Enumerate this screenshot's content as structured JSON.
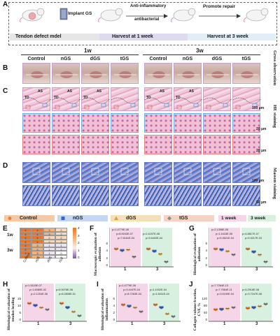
{
  "panel_labels": [
    "A",
    "B",
    "C",
    "D",
    "E",
    "F",
    "G",
    "H",
    "I",
    "J"
  ],
  "panel_a": {
    "steps": [
      "Implant GS",
      "Anti-inflammatory",
      "antibacterial",
      "Promote repair"
    ],
    "timeline": [
      "Tendon defect mdel",
      "Harvest at 1 week",
      "Harvest at 3 week"
    ]
  },
  "time_headers": [
    "1w",
    "3w"
  ],
  "group_headers": [
    "Control",
    "nGS",
    "dGS",
    "tGS",
    "Control",
    "nGS",
    "dGS",
    "tGS"
  ],
  "side_labels": {
    "gross": "Gross observation",
    "he": "HE staining",
    "masson": "Masson staining"
  },
  "tissue_labels": {
    "as": "AS",
    "td": "TD"
  },
  "scale_bars": {
    "c_top": "100 μm",
    "c_mid": "20 μm",
    "c_bot": "20 μm",
    "d_top": "100 μm",
    "d_bot": "50 μm"
  },
  "legend": {
    "groups": [
      "Control",
      "nGS",
      "dGS",
      "tGS"
    ],
    "times": [
      "1 week",
      "3 week"
    ]
  },
  "colors": {
    "control": "#e8823a",
    "ngs": "#3b66c4",
    "dgs": "#d4a24a",
    "tgs": "#8a8a8a",
    "legend_bg_control": "#f6c9a6",
    "legend_bg_ngs": "#c7d6f0",
    "legend_bg_dgs": "#f4e0b8",
    "legend_bg_tgs": "#f6d2c6",
    "band_week1": "#f5d6e8",
    "band_week3": "#d8f0e0",
    "heat_high": "#e8762a",
    "heat_mid": "#f4b27a",
    "heat_low": "#7a54a8"
  },
  "heatmap": {
    "row_groups": [
      "1w",
      "3w"
    ],
    "columns": [
      "Control",
      "nGS",
      "dGS",
      "tGS"
    ],
    "cells": [
      [
        "4",
        "4",
        "3",
        "2"
      ],
      [
        "4",
        "4",
        "3",
        "2"
      ],
      [
        "4",
        "4",
        "2",
        "2"
      ],
      [
        "4",
        "4",
        "2",
        "2"
      ],
      [
        "4",
        "3",
        "1",
        "1"
      ],
      [
        "4",
        "3",
        "1",
        "1"
      ],
      [
        "4",
        "3",
        "1",
        "0"
      ],
      [
        "4",
        "3",
        "1",
        "0"
      ]
    ],
    "scale_ticks": [
      "4",
      "3",
      "2",
      "1",
      "0"
    ]
  },
  "chart_data": [
    {
      "panel": "F",
      "type": "scatter",
      "ylabel": "Macroscopic evaluation of adhesion",
      "x_ticks": [
        "1",
        "3"
      ],
      "y_ticks": [
        "0",
        "2",
        "4",
        "6"
      ],
      "ylim": [
        0,
        6
      ],
      "pvalues": [
        "p=1.4779E-06",
        "p=8.9243E-07",
        "p=2.4157E-08",
        "p=7.5161E-04",
        "p=3.5402E-04"
      ],
      "series": [
        {
          "name": "Control",
          "x": [
            1,
            3
          ],
          "values": [
            4.6,
            4.6
          ]
        },
        {
          "name": "nGS",
          "x": [
            1,
            3
          ],
          "values": [
            4.2,
            4.0
          ]
        },
        {
          "name": "dGS",
          "x": [
            1,
            3
          ],
          "values": [
            4.4,
            3.2
          ]
        },
        {
          "name": "tGS",
          "x": [
            1,
            3
          ],
          "values": [
            2.4,
            1.0
          ]
        }
      ]
    },
    {
      "panel": "G",
      "type": "scatter",
      "ylabel": "Histological evaluation of adhesion",
      "x_ticks": [
        "1",
        "3"
      ],
      "y_ticks": [
        "0",
        "2",
        "4",
        "6"
      ],
      "ylim": [
        0,
        6
      ],
      "pvalues": [
        "p=2.1398E-05",
        "p=1.4418E-06",
        "p=4.8817E-07",
        "p=5.3621E-04",
        "p=9.3217E-03"
      ],
      "series": [
        {
          "name": "Control",
          "x": [
            1,
            3
          ],
          "values": [
            4.6,
            4.6
          ]
        },
        {
          "name": "nGS",
          "x": [
            1,
            3
          ],
          "values": [
            4.4,
            3.8
          ]
        },
        {
          "name": "dGS",
          "x": [
            1,
            3
          ],
          "values": [
            4.0,
            3.0
          ]
        },
        {
          "name": "tGS",
          "x": [
            1,
            3
          ],
          "values": [
            3.0,
            1.0
          ]
        }
      ]
    },
    {
      "panel": "H",
      "type": "scatter",
      "ylabel": "Histological evaluation of tendon healing",
      "x_ticks": [
        "1",
        "3"
      ],
      "y_ticks": [
        "0",
        "5",
        "10",
        "15"
      ],
      "ylim": [
        0,
        15
      ],
      "pvalues": [
        "p=1.5119E-07",
        "p=1.6080E-02",
        "p=5.9076E-06",
        "p=2.1254E-06",
        "p=6.2806E-01"
      ],
      "series": [
        {
          "name": "Control",
          "x": [
            1,
            3
          ],
          "values": [
            12.0,
            12.0
          ]
        },
        {
          "name": "nGS",
          "x": [
            1,
            3
          ],
          "values": [
            10.5,
            9.0
          ]
        },
        {
          "name": "dGS",
          "x": [
            1,
            3
          ],
          "values": [
            9.0,
            6.0
          ]
        },
        {
          "name": "tGS",
          "x": [
            1,
            3
          ],
          "values": [
            7.5,
            3.0
          ]
        }
      ]
    },
    {
      "panel": "I",
      "type": "scatter",
      "ylabel": "Histological evaluation of inflammation",
      "x_ticks": [
        "1",
        "3"
      ],
      "y_ticks": [
        "0",
        "2",
        "4",
        "6"
      ],
      "ylim": [
        0,
        6
      ],
      "pvalues": [
        "p=1.4779E-06",
        "p=3.4447E-04",
        "p=1.1002E-04",
        "p=8.7263E-04",
        "p=1.5011E-04"
      ],
      "series": [
        {
          "name": "Control",
          "x": [
            1,
            3
          ],
          "values": [
            4.4,
            4.4
          ]
        },
        {
          "name": "nGS",
          "x": [
            1,
            3
          ],
          "values": [
            4.0,
            3.6
          ]
        },
        {
          "name": "dGS",
          "x": [
            1,
            3
          ],
          "values": [
            3.6,
            1.8
          ]
        },
        {
          "name": "tGS",
          "x": [
            1,
            3
          ],
          "values": [
            2.4,
            1.0
          ]
        }
      ]
    },
    {
      "panel": "J",
      "type": "scatter",
      "ylabel": "Collagen volume fraction, CVF, %",
      "x_ticks": [
        "1",
        "3"
      ],
      "y_ticks": [
        "0",
        "40",
        "80",
        "120"
      ],
      "ylim": [
        0,
        120
      ],
      "pvalues": [
        "p=7.7264E-13",
        "p=7.7564E-11",
        "p=5.2916E-08",
        "p=3.5159E-04",
        "p=3.7047E-08"
      ],
      "series": [
        {
          "name": "Control",
          "x": [
            1,
            3
          ],
          "values": [
            60,
            68
          ]
        },
        {
          "name": "nGS",
          "x": [
            1,
            3
          ],
          "values": [
            62,
            72
          ]
        },
        {
          "name": "dGS",
          "x": [
            1,
            3
          ],
          "values": [
            66,
            80
          ]
        },
        {
          "name": "tGS",
          "x": [
            1,
            3
          ],
          "values": [
            72,
            92
          ]
        }
      ]
    }
  ]
}
